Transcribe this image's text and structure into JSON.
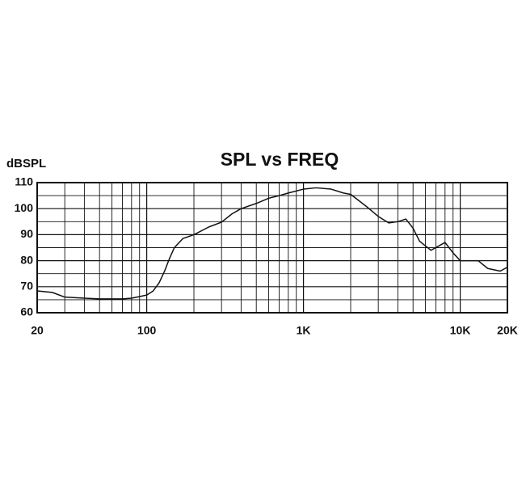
{
  "chart_data": {
    "type": "line",
    "title": "SPL vs FREQ",
    "y_label": "dBSPL",
    "xscale": "log",
    "grid": true,
    "color": "#111111",
    "x": [
      20,
      25,
      30,
      40,
      50,
      60,
      70,
      80,
      90,
      100,
      110,
      120,
      130,
      140,
      150,
      170,
      200,
      250,
      300,
      350,
      400,
      500,
      600,
      700,
      800,
      1000,
      1200,
      1500,
      1800,
      2000,
      2500,
      3000,
      3500,
      4000,
      4500,
      5000,
      5500,
      6500,
      8000,
      9000,
      10000,
      12000,
      13000,
      15000,
      18000,
      20000
    ],
    "values": [
      68.4,
      67.8,
      66,
      65.6,
      65.3,
      65.3,
      65.3,
      65.6,
      66.2,
      66.8,
      68.4,
      71.5,
      76,
      81,
      85,
      88.5,
      90,
      93,
      94.8,
      98,
      100,
      102,
      104,
      105,
      106,
      107.5,
      108,
      107.5,
      106,
      105.5,
      101,
      97,
      94.5,
      95,
      96,
      92.5,
      87.5,
      84,
      87,
      83,
      80,
      80,
      80,
      77,
      76,
      77.5
    ],
    "xlim": [
      20,
      20000
    ],
    "ylim": [
      60,
      110
    ],
    "yticks": [
      60,
      70,
      80,
      90,
      100,
      110
    ],
    "xticks": [
      20,
      100,
      {
        "value": 1000,
        "label": "1K"
      },
      {
        "value": 10000,
        "label": "10K"
      },
      {
        "value": 20000,
        "label": "20K"
      }
    ],
    "xminor": [
      30,
      40,
      50,
      60,
      70,
      80,
      90,
      200,
      300,
      400,
      500,
      600,
      700,
      800,
      900,
      2000,
      3000,
      4000,
      5000,
      6000,
      7000,
      8000,
      9000
    ],
    "yminor": [
      65,
      75,
      85,
      95,
      105
    ]
  }
}
